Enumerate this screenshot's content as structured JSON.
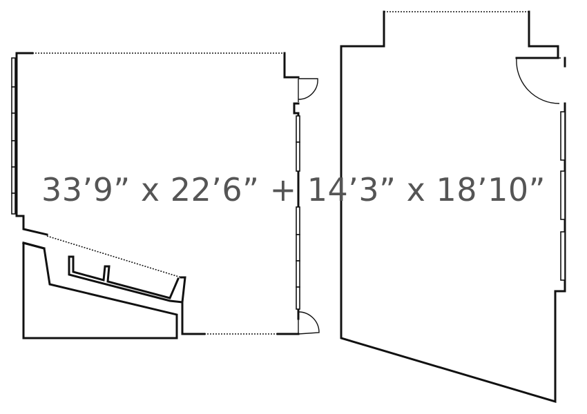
{
  "floorplan": {
    "dimensions_label": "33’9” x 22’6” + 14’3” x 18’10”",
    "colors": {
      "walls": "#111111",
      "label": "#555555",
      "background": "#ffffff"
    }
  }
}
